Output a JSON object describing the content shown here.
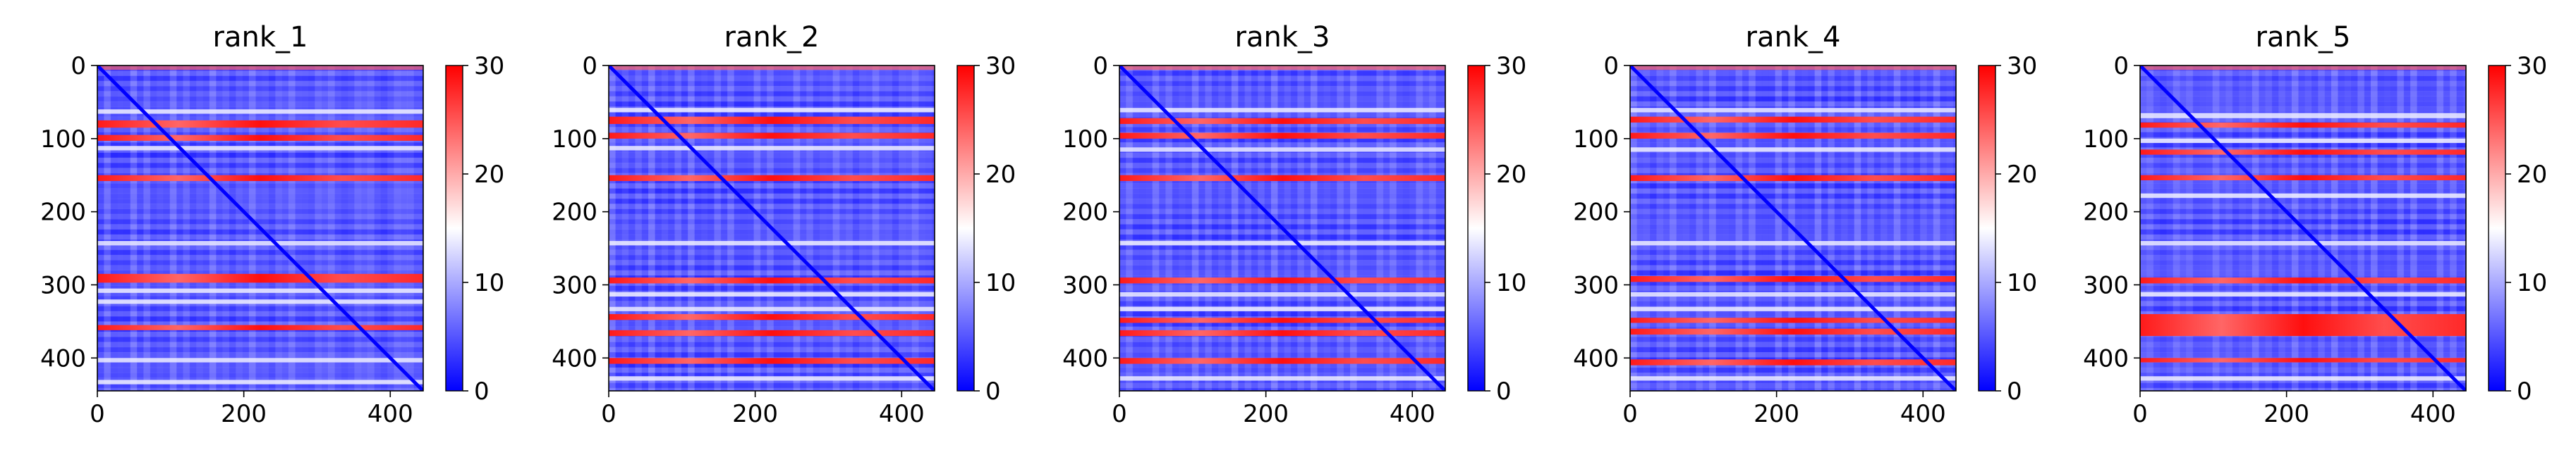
{
  "figure": {
    "colormap": [
      "#0000ff",
      "#ffffff",
      "#ff0000"
    ],
    "panels": [
      {
        "title": "rank_1"
      },
      {
        "title": "rank_2"
      },
      {
        "title": "rank_3"
      },
      {
        "title": "rank_4"
      },
      {
        "title": "rank_5"
      }
    ]
  },
  "chart_data": [
    {
      "type": "heatmap",
      "title": "rank_1",
      "x_ticks": [
        0,
        200,
        400
      ],
      "y_ticks": [
        0,
        100,
        200,
        300,
        400
      ],
      "xlim": [
        0,
        445
      ],
      "ylim": [
        445,
        0
      ],
      "colorbar": {
        "range": [
          0,
          30
        ],
        "ticks": [
          0,
          10,
          20,
          30
        ]
      },
      "red_bands": [
        [
          75,
          85
        ],
        [
          95,
          103
        ],
        [
          150,
          158
        ],
        [
          285,
          297
        ],
        [
          355,
          362
        ]
      ],
      "white_bands": [
        [
          60,
          66
        ],
        [
          110,
          116
        ],
        [
          240,
          246
        ],
        [
          305,
          311
        ],
        [
          320,
          326
        ],
        [
          400,
          406
        ],
        [
          430,
          436
        ]
      ],
      "diagonal": "low (blue)"
    },
    {
      "type": "heatmap",
      "title": "rank_2",
      "x_ticks": [
        0,
        200,
        400
      ],
      "y_ticks": [
        0,
        100,
        200,
        300,
        400
      ],
      "xlim": [
        0,
        445
      ],
      "ylim": [
        445,
        0
      ],
      "colorbar": {
        "range": [
          0,
          30
        ],
        "ticks": [
          0,
          10,
          20,
          30
        ]
      },
      "red_bands": [
        [
          70,
          80
        ],
        [
          92,
          100
        ],
        [
          150,
          158
        ],
        [
          290,
          298
        ],
        [
          340,
          348
        ],
        [
          362,
          370
        ],
        [
          400,
          408
        ]
      ],
      "white_bands": [
        [
          58,
          64
        ],
        [
          110,
          116
        ],
        [
          240,
          246
        ],
        [
          310,
          316
        ],
        [
          330,
          336
        ],
        [
          425,
          431
        ]
      ],
      "diagonal": "low (blue)"
    },
    {
      "type": "heatmap",
      "title": "rank_3",
      "x_ticks": [
        0,
        200,
        400
      ],
      "y_ticks": [
        0,
        100,
        200,
        300,
        400
      ],
      "xlim": [
        0,
        445
      ],
      "ylim": [
        445,
        0
      ],
      "colorbar": {
        "range": [
          0,
          30
        ],
        "ticks": [
          0,
          10,
          20,
          30
        ]
      },
      "red_bands": [
        [
          72,
          80
        ],
        [
          92,
          100
        ],
        [
          150,
          158
        ],
        [
          290,
          298
        ],
        [
          345,
          352
        ],
        [
          362,
          370
        ],
        [
          400,
          408
        ]
      ],
      "white_bands": [
        [
          58,
          64
        ],
        [
          112,
          118
        ],
        [
          240,
          246
        ],
        [
          310,
          316
        ],
        [
          330,
          336
        ],
        [
          425,
          431
        ]
      ],
      "diagonal": "low (blue)"
    },
    {
      "type": "heatmap",
      "title": "rank_4",
      "x_ticks": [
        0,
        200,
        400
      ],
      "y_ticks": [
        0,
        100,
        200,
        300,
        400
      ],
      "xlim": [
        0,
        445
      ],
      "ylim": [
        445,
        0
      ],
      "colorbar": {
        "range": [
          0,
          30
        ],
        "ticks": [
          0,
          10,
          20,
          30
        ]
      },
      "red_bands": [
        [
          70,
          78
        ],
        [
          92,
          100
        ],
        [
          150,
          158
        ],
        [
          288,
          296
        ],
        [
          345,
          352
        ],
        [
          360,
          368
        ],
        [
          402,
          410
        ]
      ],
      "white_bands": [
        [
          58,
          64
        ],
        [
          112,
          118
        ],
        [
          240,
          246
        ],
        [
          310,
          316
        ],
        [
          330,
          336
        ],
        [
          425,
          431
        ]
      ],
      "diagonal": "low (blue)"
    },
    {
      "type": "heatmap",
      "title": "rank_5",
      "x_ticks": [
        0,
        200,
        400
      ],
      "y_ticks": [
        0,
        100,
        200,
        300,
        400
      ],
      "xlim": [
        0,
        445
      ],
      "ylim": [
        445,
        0
      ],
      "colorbar": {
        "range": [
          0,
          30
        ],
        "ticks": [
          0,
          10,
          20,
          30
        ]
      },
      "red_bands": [
        [
          78,
          85
        ],
        [
          115,
          122
        ],
        [
          150,
          157
        ],
        [
          290,
          298
        ],
        [
          340,
          370
        ],
        [
          400,
          406
        ]
      ],
      "white_bands": [
        [
          65,
          72
        ],
        [
          100,
          106
        ],
        [
          175,
          181
        ],
        [
          240,
          246
        ],
        [
          310,
          316
        ],
        [
          425,
          431
        ]
      ],
      "diagonal": "low (blue)"
    }
  ]
}
